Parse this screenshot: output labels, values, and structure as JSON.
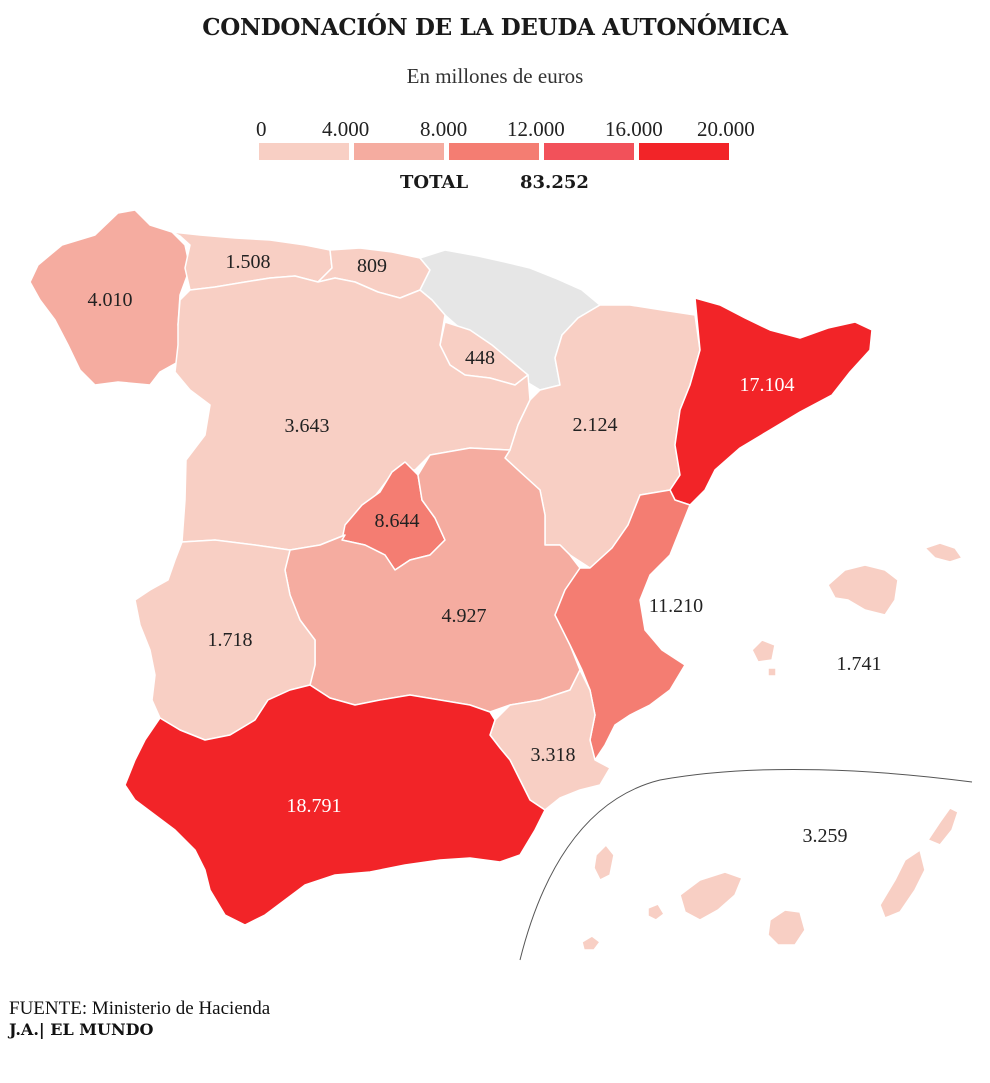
{
  "title": "CONDONACIÓN DE LA DEUDA AUTONÓMICA",
  "subtitle": "En millones de euros",
  "legend": {
    "ticks": [
      "0",
      "4.000",
      "8.000",
      "12.000",
      "16.000",
      "20.000"
    ],
    "colors": [
      "#f8cfc4",
      "#f5aca0",
      "#f47d72",
      "#f2515a",
      "#f22428"
    ]
  },
  "total": {
    "label": "TOTAL",
    "value": "83.252"
  },
  "regions": [
    {
      "name": "Galicia",
      "label": "4.010",
      "value": 4010,
      "color": "#f5aca0"
    },
    {
      "name": "Asturias",
      "label": "1.508",
      "value": 1508,
      "color": "#f8cfc4"
    },
    {
      "name": "Cantabria",
      "label": "809",
      "value": 809,
      "color": "#f8cfc4"
    },
    {
      "name": "País Vasco / Navarra",
      "label": "",
      "value": null,
      "color": "#e6e6e6"
    },
    {
      "name": "La Rioja",
      "label": "448",
      "value": 448,
      "color": "#f8cfc4"
    },
    {
      "name": "Castilla y León",
      "label": "3.643",
      "value": 3643,
      "color": "#f8cfc4"
    },
    {
      "name": "Aragón",
      "label": "2.124",
      "value": 2124,
      "color": "#f8cfc4"
    },
    {
      "name": "Cataluña",
      "label": "17.104",
      "value": 17104,
      "color": "#f22428"
    },
    {
      "name": "Madrid",
      "label": "8.644",
      "value": 8644,
      "color": "#f47d72"
    },
    {
      "name": "Castilla-La Mancha",
      "label": "4.927",
      "value": 4927,
      "color": "#f5aca0"
    },
    {
      "name": "Extremadura",
      "label": "1.718",
      "value": 1718,
      "color": "#f8cfc4"
    },
    {
      "name": "Comunidad Valenciana",
      "label": "11.210",
      "value": 11210,
      "color": "#f47d72"
    },
    {
      "name": "Murcia",
      "label": "3.318",
      "value": 3318,
      "color": "#f8cfc4"
    },
    {
      "name": "Andalucía",
      "label": "18.791",
      "value": 18791,
      "color": "#f22428"
    },
    {
      "name": "Baleares",
      "label": "1.741",
      "value": 1741,
      "color": "#f8cfc4"
    },
    {
      "name": "Canarias",
      "label": "3.259",
      "value": 3259,
      "color": "#f8cfc4"
    }
  ],
  "source": "FUENTE: Ministerio de Hacienda",
  "credit": "J.A.| EL MUNDO"
}
